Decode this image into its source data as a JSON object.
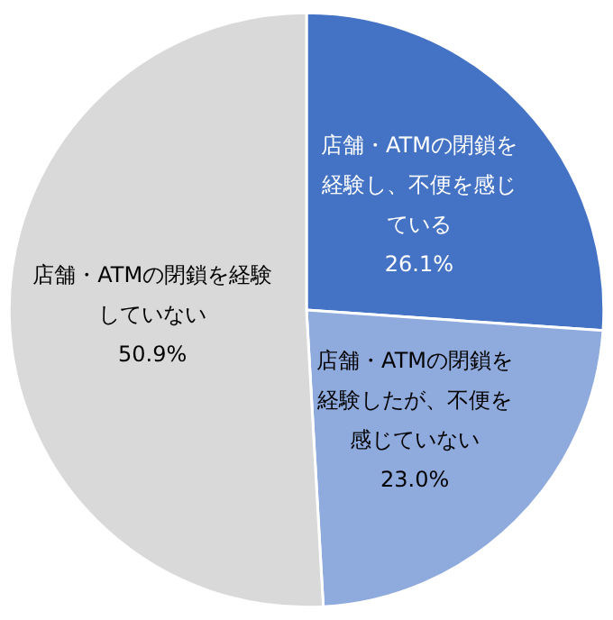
{
  "chart_data": {
    "type": "pie",
    "categories": [
      "店舗・ATMの閉鎖を経験し、不便を感じている",
      "店舗・ATMの閉鎖を経験したが、不便を感じていない",
      "店舗・ATMの閉鎖を経験していない"
    ],
    "values": [
      26.1,
      23.0,
      50.9
    ],
    "value_labels": [
      "26.1%",
      "23.0%",
      "50.9%"
    ],
    "colors": [
      "#4472c4",
      "#8faadc",
      "#d9d9d9"
    ]
  }
}
